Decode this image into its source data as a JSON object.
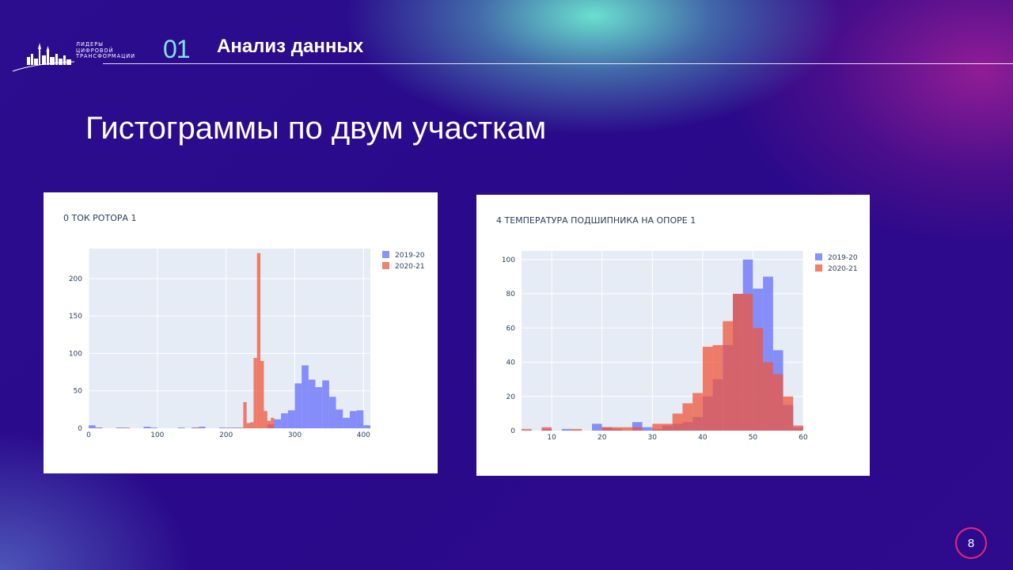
{
  "header": {
    "logo_lines": [
      "ЛИДЕРЫ",
      "ЦИФРОВОЙ",
      "ТРАНСФОРМАЦИИ"
    ],
    "section_number": "01",
    "section_title": "Анализ данных"
  },
  "slide": {
    "title": "Гистограммы по двум участкам",
    "page_number": "8"
  },
  "colors": {
    "series_a": "#636efa",
    "series_b": "#ef553b",
    "plot_bg": "#e5ecf6",
    "accent": "#e8287a"
  },
  "chart_data": [
    {
      "type": "bar",
      "title": "0 ТОК РОТОРА 1",
      "xlabel": "",
      "ylabel": "",
      "xlim": [
        0,
        410
      ],
      "ylim": [
        0,
        240
      ],
      "xticks": [
        0,
        100,
        200,
        300,
        400
      ],
      "yticks": [
        0,
        50,
        100,
        150,
        200
      ],
      "bin_width": 10,
      "legend_position": "top-right",
      "series": [
        {
          "name": "2019-20",
          "bins": [
            [
              0,
              4
            ],
            [
              10,
              1
            ],
            [
              40,
              1
            ],
            [
              80,
              2
            ],
            [
              90,
              1
            ],
            [
              130,
              1
            ],
            [
              150,
              1
            ],
            [
              160,
              2
            ],
            [
              190,
              1
            ],
            [
              210,
              1
            ],
            [
              260,
              5
            ],
            [
              270,
              12
            ],
            [
              280,
              20
            ],
            [
              290,
              24
            ],
            [
              300,
              60
            ],
            [
              310,
              84
            ],
            [
              320,
              65
            ],
            [
              330,
              55
            ],
            [
              340,
              64
            ],
            [
              350,
              42
            ],
            [
              360,
              25
            ],
            [
              370,
              14
            ],
            [
              380,
              23
            ],
            [
              390,
              24
            ],
            [
              400,
              4
            ]
          ]
        },
        {
          "name": "2020-21",
          "bins": [
            [
              10,
              1
            ],
            [
              50,
              1
            ],
            [
              150,
              1
            ],
            [
              200,
              1
            ],
            [
              220,
              1
            ],
            [
              225,
              35
            ],
            [
              230,
              7
            ],
            [
              235,
              8
            ],
            [
              240,
              94
            ],
            [
              245,
              234
            ],
            [
              250,
              90
            ],
            [
              255,
              23
            ],
            [
              260,
              10
            ],
            [
              265,
              14
            ]
          ]
        }
      ]
    },
    {
      "type": "bar",
      "title": "4 ТЕМПЕРАТУРА ПОДШИПНИКА НА ОПОРЕ 1",
      "xlabel": "",
      "ylabel": "",
      "xlim": [
        4,
        60
      ],
      "ylim": [
        0,
        105
      ],
      "xticks": [
        10,
        20,
        30,
        40,
        50,
        60
      ],
      "yticks": [
        0,
        20,
        40,
        60,
        80,
        100
      ],
      "bin_width": 2,
      "legend_position": "top-right",
      "series": [
        {
          "name": "2019-20",
          "bins": [
            [
              8,
              1
            ],
            [
              12,
              1
            ],
            [
              18,
              4
            ],
            [
              20,
              2
            ],
            [
              22,
              1
            ],
            [
              26,
              5
            ],
            [
              28,
              2
            ],
            [
              30,
              1
            ],
            [
              32,
              3
            ],
            [
              34,
              4
            ],
            [
              36,
              5
            ],
            [
              38,
              8
            ],
            [
              40,
              20
            ],
            [
              42,
              30
            ],
            [
              44,
              50
            ],
            [
              46,
              80
            ],
            [
              48,
              100
            ],
            [
              50,
              83
            ],
            [
              52,
              90
            ],
            [
              54,
              47
            ],
            [
              56,
              15
            ],
            [
              58,
              2
            ]
          ]
        },
        {
          "name": "2020-21",
          "bins": [
            [
              4,
              1
            ],
            [
              8,
              2
            ],
            [
              14,
              1
            ],
            [
              20,
              2
            ],
            [
              22,
              2
            ],
            [
              24,
              2
            ],
            [
              26,
              2
            ],
            [
              30,
              4
            ],
            [
              32,
              4
            ],
            [
              34,
              10
            ],
            [
              36,
              16
            ],
            [
              38,
              22
            ],
            [
              40,
              49
            ],
            [
              42,
              50
            ],
            [
              44,
              64
            ],
            [
              46,
              80
            ],
            [
              48,
              80
            ],
            [
              50,
              60
            ],
            [
              52,
              40
            ],
            [
              54,
              33
            ],
            [
              56,
              20
            ],
            [
              58,
              3
            ]
          ]
        }
      ]
    }
  ]
}
